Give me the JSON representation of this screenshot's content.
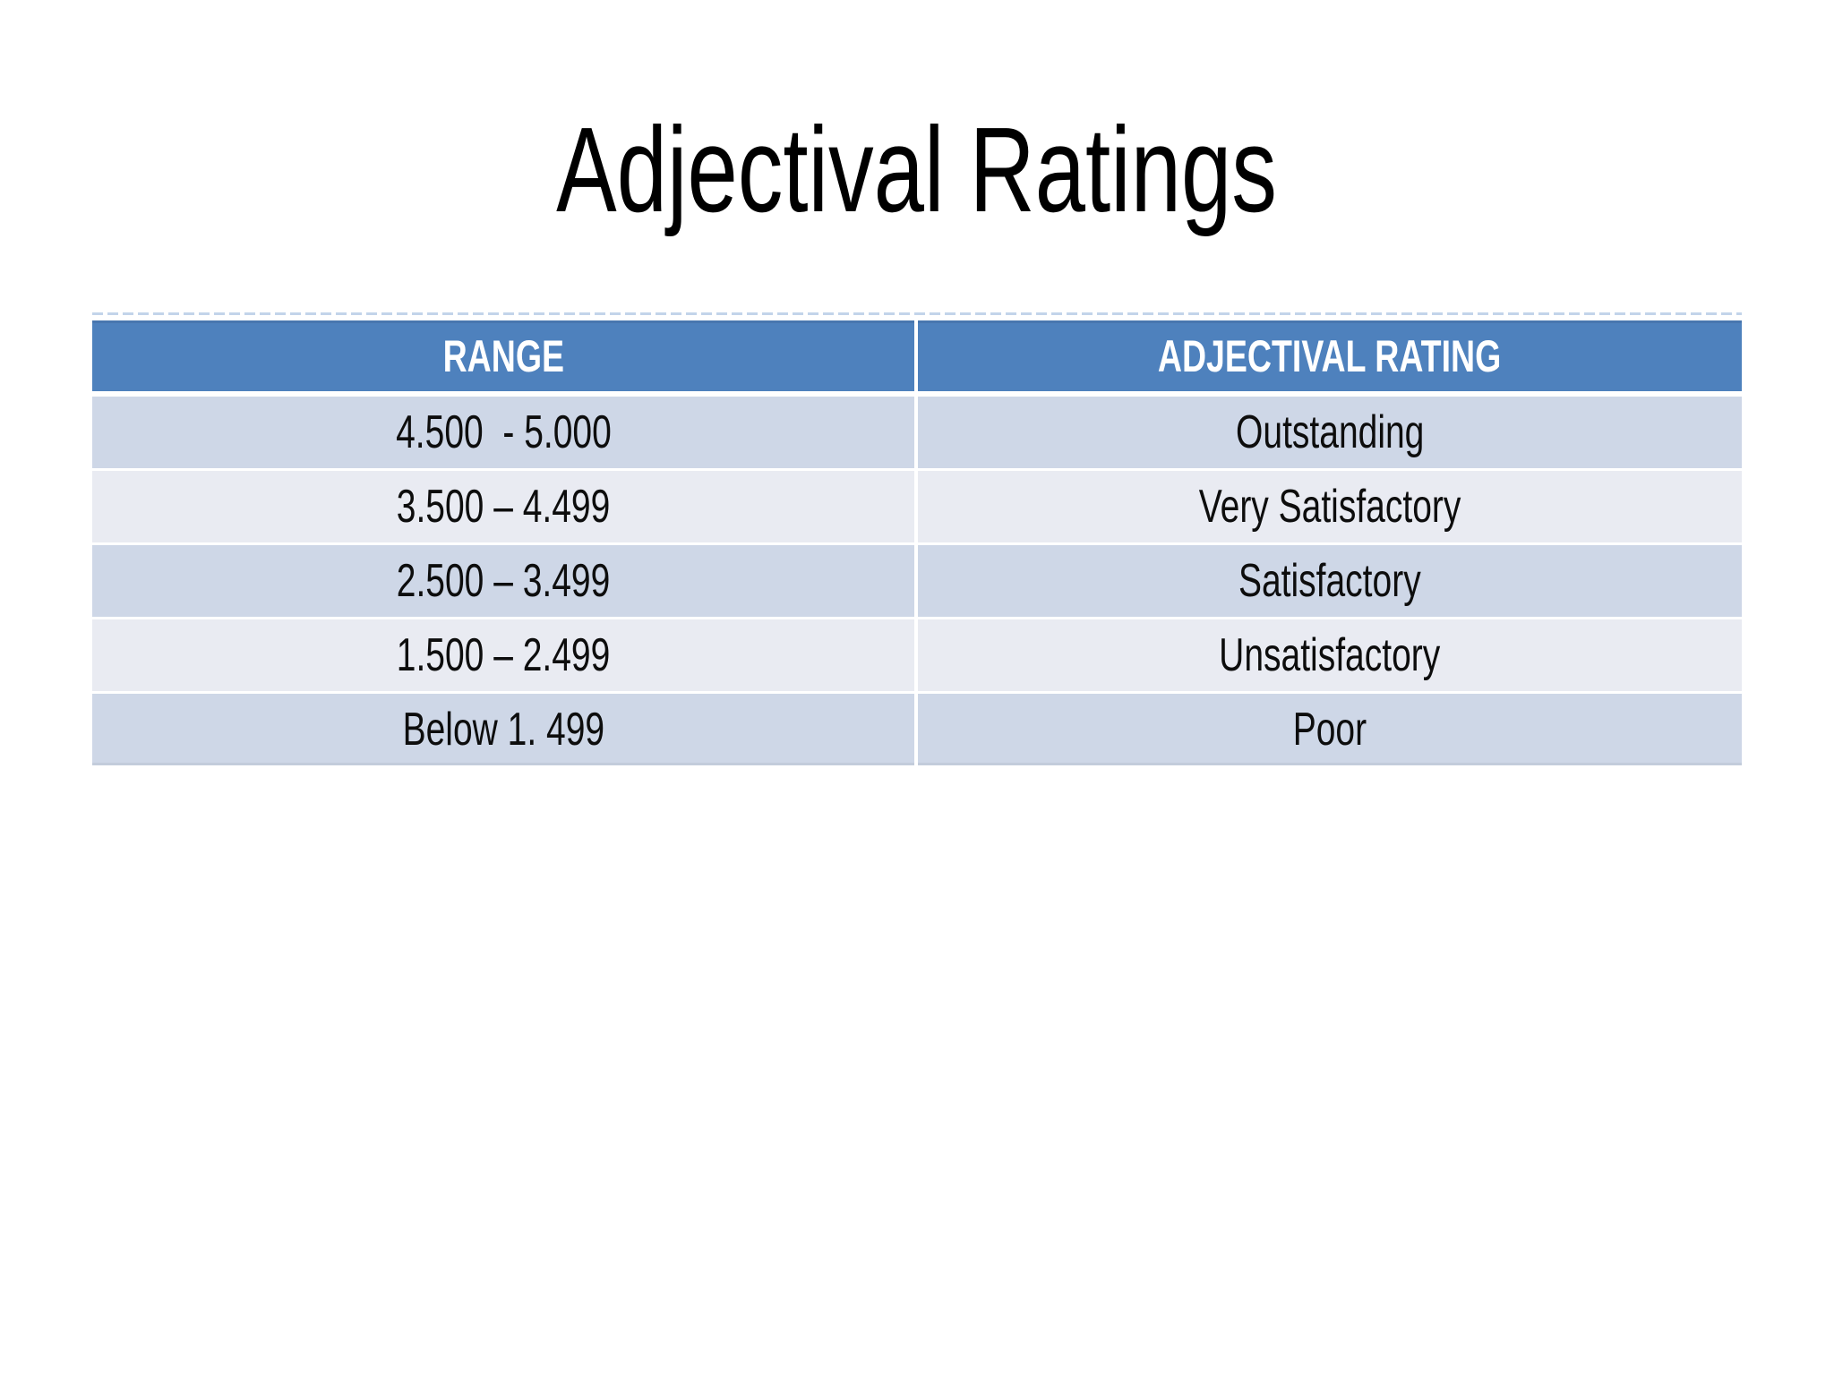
{
  "title": "Adjectival Ratings",
  "colors": {
    "slide-bg": "#ffffff",
    "title-color": "#000000",
    "header-bg": "#4e81bd",
    "header-text": "#ffffff",
    "row-dark": "#ced7e7",
    "row-light": "#e9ebf2",
    "topline-color": "#c3d4ea",
    "text-color": "#0d0d0d"
  },
  "table": {
    "headers": [
      "RANGE",
      "ADJECTIVAL RATING"
    ],
    "rows": [
      {
        "range": "4.500  - 5.000",
        "rating": "Outstanding"
      },
      {
        "range": "3.500 – 4.499",
        "rating": "Very Satisfactory"
      },
      {
        "range": "2.500 – 3.499",
        "rating": "Satisfactory"
      },
      {
        "range": "1.500 – 2.499",
        "rating": "Unsatisfactory"
      },
      {
        "range": "Below 1. 499",
        "rating": "Poor"
      }
    ]
  }
}
